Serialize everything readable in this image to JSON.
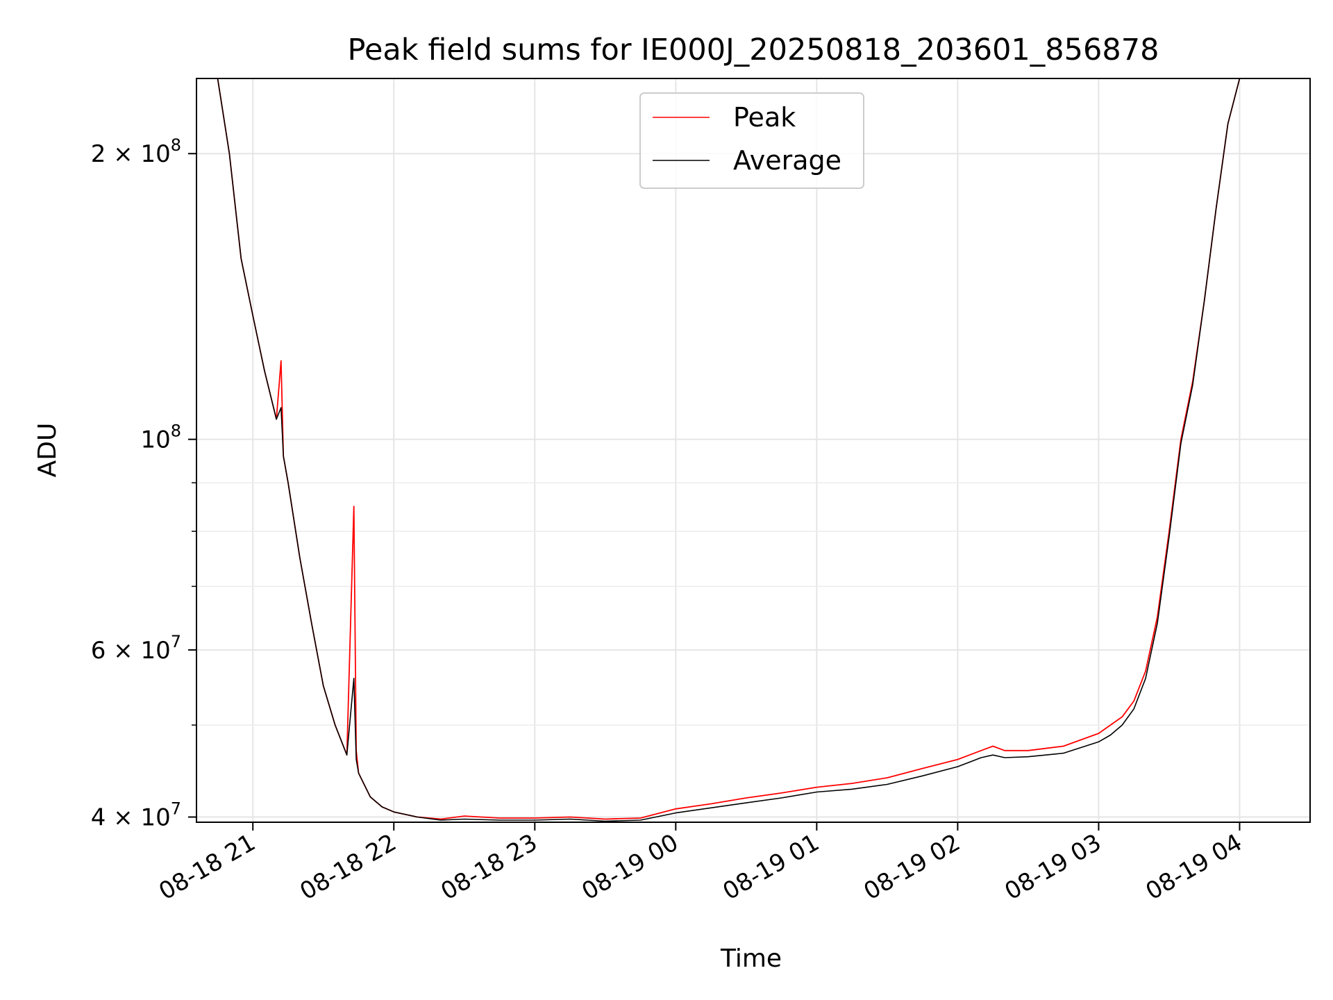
{
  "chart_data": {
    "type": "line",
    "title": "Peak field sums for IE000J_20250818_203601_856878",
    "xlabel": "Time",
    "ylabel": "ADU",
    "y_scale": "log",
    "xlim": [
      "2025-08-18 20:36",
      "2025-08-19 04:30"
    ],
    "ylim": [
      39500000,
      240000000
    ],
    "x_ticks": [
      {
        "value": "2025-08-18 21:00",
        "label": "08-18 21"
      },
      {
        "value": "2025-08-18 22:00",
        "label": "08-18 22"
      },
      {
        "value": "2025-08-18 23:00",
        "label": "08-18 23"
      },
      {
        "value": "2025-08-19 00:00",
        "label": "08-19 00"
      },
      {
        "value": "2025-08-19 01:00",
        "label": "08-19 01"
      },
      {
        "value": "2025-08-19 02:00",
        "label": "08-19 02"
      },
      {
        "value": "2025-08-19 03:00",
        "label": "08-19 03"
      },
      {
        "value": "2025-08-19 04:00",
        "label": "08-19 04"
      }
    ],
    "y_ticks": [
      {
        "value": 40000000,
        "base": "4 × 10",
        "exp": "7"
      },
      {
        "value": 60000000,
        "base": "6 × 10",
        "exp": "7"
      },
      {
        "value": 100000000,
        "base": "10",
        "exp": "8"
      },
      {
        "value": 200000000,
        "base": "2 × 10",
        "exp": "8"
      }
    ],
    "y_minor_ticks": [
      50000000,
      70000000,
      80000000,
      90000000
    ],
    "grid": true,
    "legend_position": "top-center",
    "series": [
      {
        "name": "Peak",
        "color": "#ff0000",
        "x": [
          "2025-08-18 20:36",
          "2025-08-18 20:45",
          "2025-08-18 20:50",
          "2025-08-18 20:55",
          "2025-08-18 21:00",
          "2025-08-18 21:05",
          "2025-08-18 21:10",
          "2025-08-18 21:12",
          "2025-08-18 21:13",
          "2025-08-18 21:15",
          "2025-08-18 21:20",
          "2025-08-18 21:25",
          "2025-08-18 21:30",
          "2025-08-18 21:35",
          "2025-08-18 21:40",
          "2025-08-18 21:43",
          "2025-08-18 21:44",
          "2025-08-18 21:45",
          "2025-08-18 21:50",
          "2025-08-18 21:55",
          "2025-08-18 22:00",
          "2025-08-18 22:10",
          "2025-08-18 22:20",
          "2025-08-18 22:30",
          "2025-08-18 22:45",
          "2025-08-18 23:00",
          "2025-08-18 23:15",
          "2025-08-18 23:30",
          "2025-08-18 23:45",
          "2025-08-19 00:00",
          "2025-08-19 00:15",
          "2025-08-19 00:30",
          "2025-08-19 00:45",
          "2025-08-19 01:00",
          "2025-08-19 01:15",
          "2025-08-19 01:30",
          "2025-08-19 01:45",
          "2025-08-19 02:00",
          "2025-08-19 02:10",
          "2025-08-19 02:15",
          "2025-08-19 02:20",
          "2025-08-19 02:30",
          "2025-08-19 02:45",
          "2025-08-19 03:00",
          "2025-08-19 03:05",
          "2025-08-19 03:10",
          "2025-08-19 03:15",
          "2025-08-19 03:20",
          "2025-08-19 03:25",
          "2025-08-19 03:30",
          "2025-08-19 03:35",
          "2025-08-19 03:40",
          "2025-08-19 03:45",
          "2025-08-19 03:50",
          "2025-08-19 03:55",
          "2025-08-19 04:00",
          "2025-08-19 04:05",
          "2025-08-19 04:30"
        ],
        "y": [
          240000000,
          240000000,
          200000000,
          155000000,
          135000000,
          118000000,
          105000000,
          121000000,
          96000000,
          90000000,
          75000000,
          64000000,
          55000000,
          50000000,
          46500000,
          85000000,
          47000000,
          44500000,
          42000000,
          41000000,
          40500000,
          40000000,
          39800000,
          40100000,
          39900000,
          39900000,
          40000000,
          39800000,
          39900000,
          40800000,
          41300000,
          41900000,
          42400000,
          43000000,
          43400000,
          44000000,
          45000000,
          46000000,
          47000000,
          47500000,
          47000000,
          47000000,
          47500000,
          49000000,
          50000000,
          51000000,
          53000000,
          57000000,
          65000000,
          80000000,
          100000000,
          115000000,
          140000000,
          175000000,
          215000000,
          240000000,
          240000000,
          240000000
        ]
      },
      {
        "name": "Average",
        "color": "#000000",
        "x": [
          "2025-08-18 20:36",
          "2025-08-18 20:45",
          "2025-08-18 20:50",
          "2025-08-18 20:55",
          "2025-08-18 21:00",
          "2025-08-18 21:05",
          "2025-08-18 21:10",
          "2025-08-18 21:12",
          "2025-08-18 21:13",
          "2025-08-18 21:15",
          "2025-08-18 21:20",
          "2025-08-18 21:25",
          "2025-08-18 21:30",
          "2025-08-18 21:35",
          "2025-08-18 21:40",
          "2025-08-18 21:43",
          "2025-08-18 21:44",
          "2025-08-18 21:45",
          "2025-08-18 21:50",
          "2025-08-18 21:55",
          "2025-08-18 22:00",
          "2025-08-18 22:10",
          "2025-08-18 22:20",
          "2025-08-18 22:30",
          "2025-08-18 22:45",
          "2025-08-18 23:00",
          "2025-08-18 23:15",
          "2025-08-18 23:30",
          "2025-08-18 23:45",
          "2025-08-19 00:00",
          "2025-08-19 00:15",
          "2025-08-19 00:30",
          "2025-08-19 00:45",
          "2025-08-19 01:00",
          "2025-08-19 01:15",
          "2025-08-19 01:30",
          "2025-08-19 01:45",
          "2025-08-19 02:00",
          "2025-08-19 02:10",
          "2025-08-19 02:15",
          "2025-08-19 02:20",
          "2025-08-19 02:30",
          "2025-08-19 02:45",
          "2025-08-19 03:00",
          "2025-08-19 03:05",
          "2025-08-19 03:10",
          "2025-08-19 03:15",
          "2025-08-19 03:20",
          "2025-08-19 03:25",
          "2025-08-19 03:30",
          "2025-08-19 03:35",
          "2025-08-19 03:40",
          "2025-08-19 03:45",
          "2025-08-19 03:50",
          "2025-08-19 03:55",
          "2025-08-19 04:00",
          "2025-08-19 04:05",
          "2025-08-19 04:30"
        ],
        "y": [
          240000000,
          240000000,
          200000000,
          155000000,
          135000000,
          118000000,
          105000000,
          108000000,
          96000000,
          90000000,
          75000000,
          64000000,
          55000000,
          50000000,
          46500000,
          56000000,
          46000000,
          44500000,
          42000000,
          41000000,
          40500000,
          40000000,
          39700000,
          39800000,
          39700000,
          39700000,
          39800000,
          39600000,
          39700000,
          40400000,
          40900000,
          41400000,
          41900000,
          42500000,
          42800000,
          43300000,
          44200000,
          45200000,
          46200000,
          46500000,
          46200000,
          46300000,
          46700000,
          48000000,
          48800000,
          50000000,
          52000000,
          56000000,
          64000000,
          79000000,
          99000000,
          114000000,
          140000000,
          175000000,
          215000000,
          240000000,
          240000000,
          240000000
        ]
      }
    ]
  }
}
